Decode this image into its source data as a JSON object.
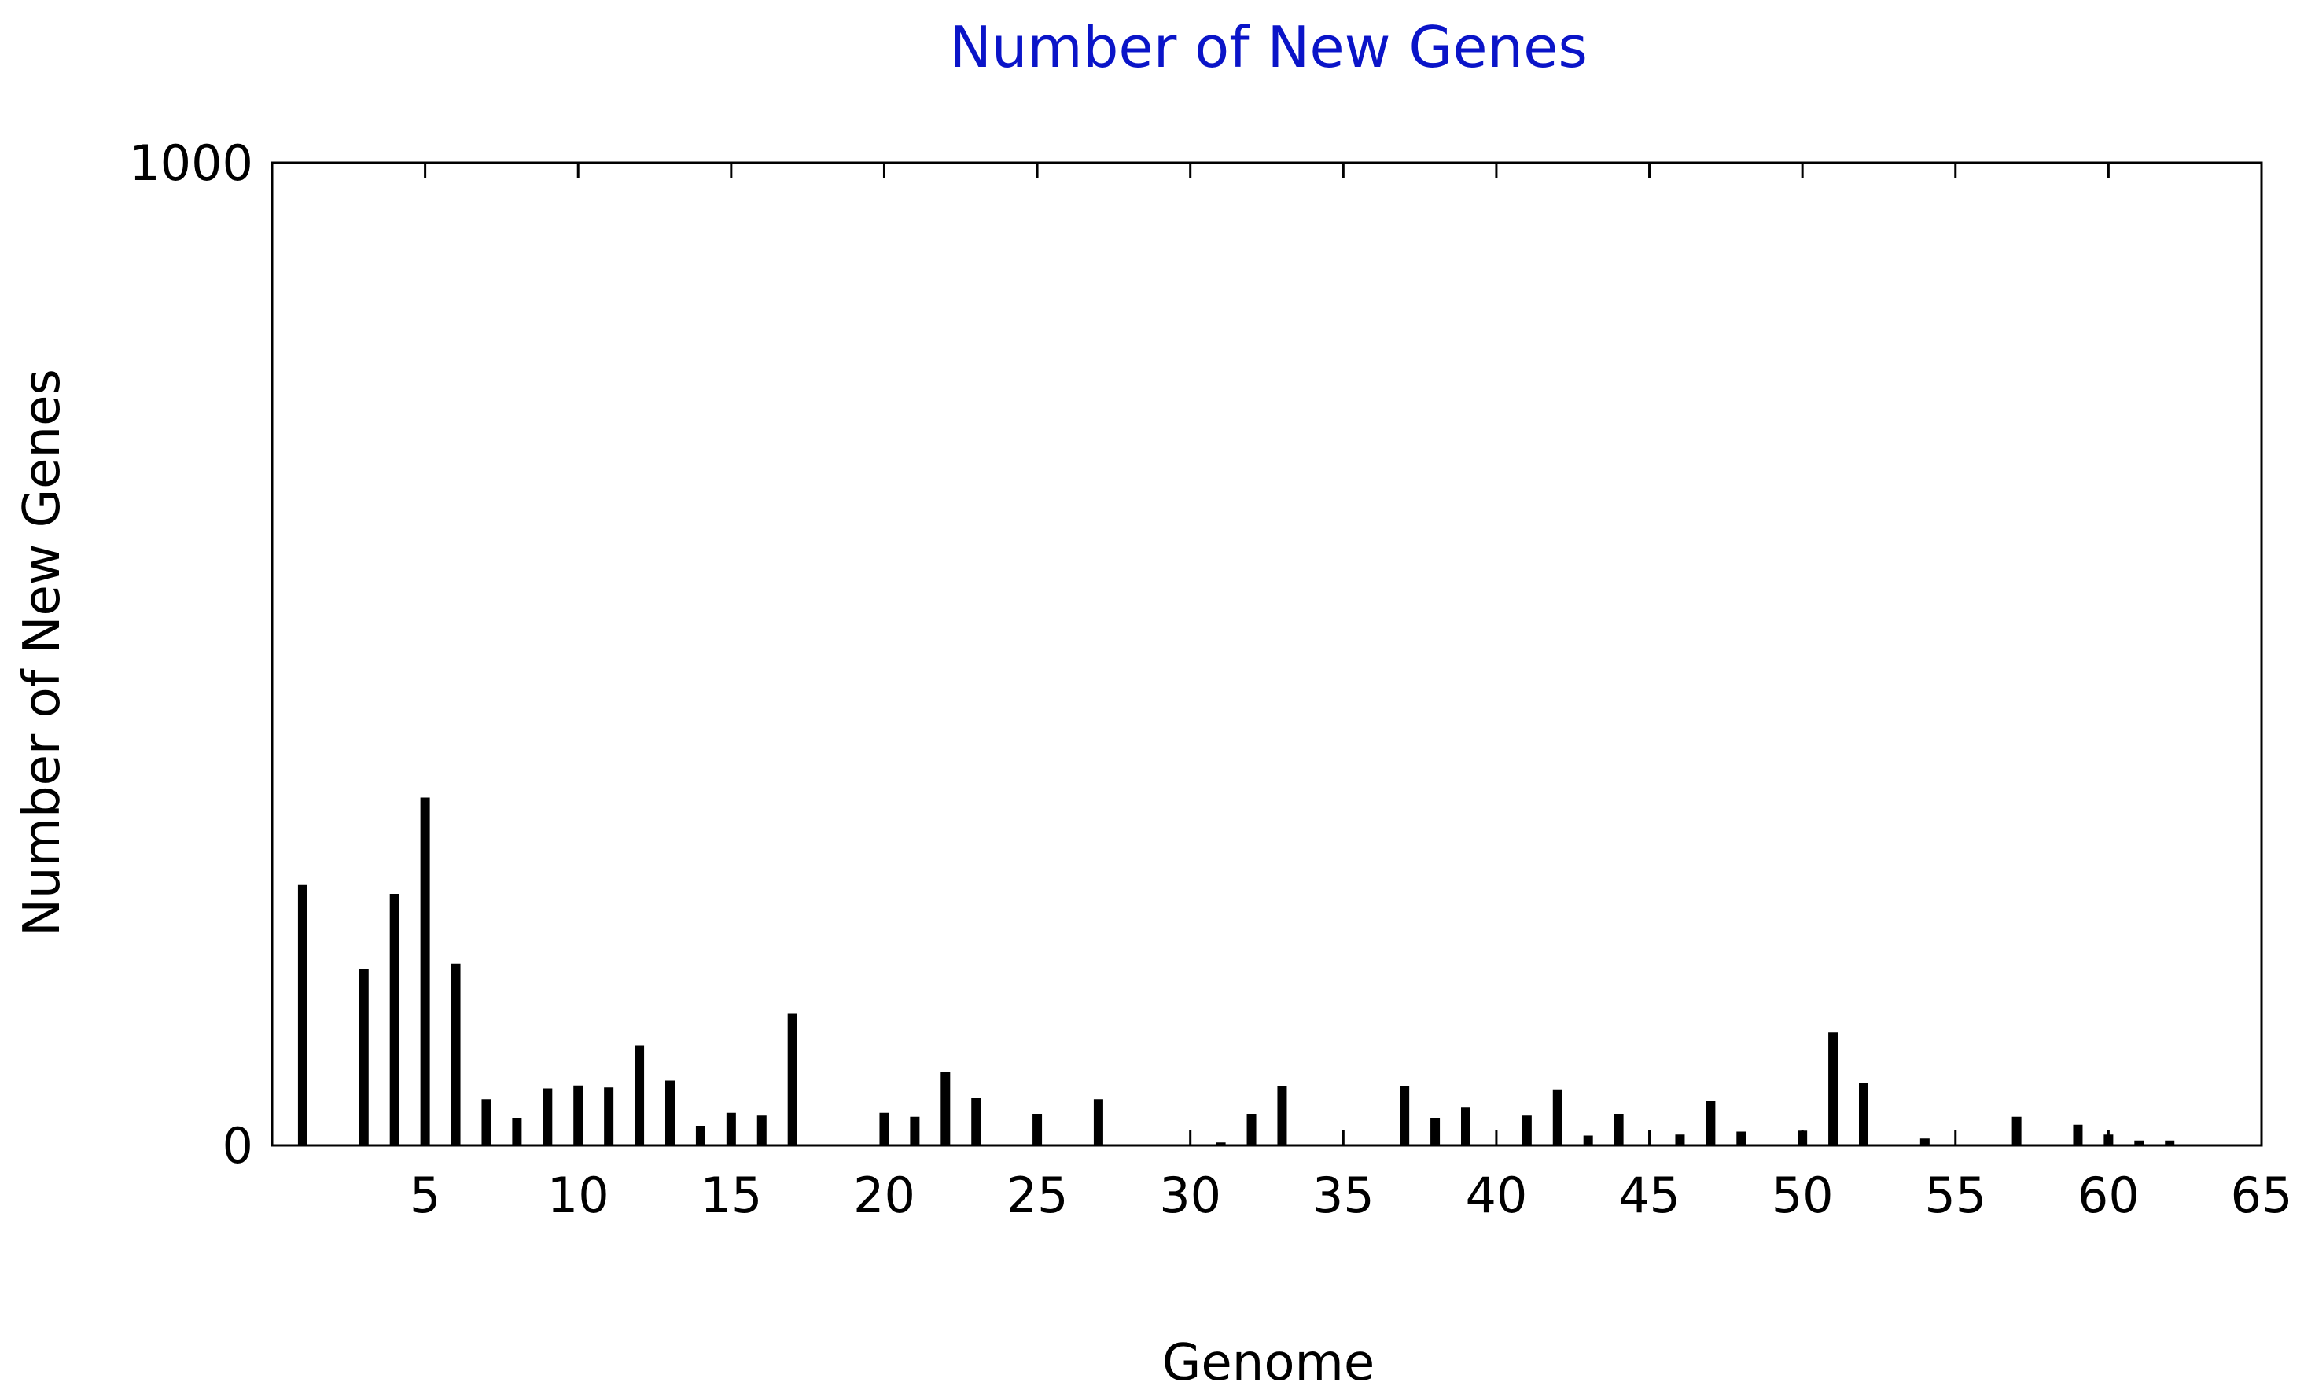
{
  "chart_data": {
    "type": "bar",
    "title": "Number of New Genes",
    "xlabel": "Genome",
    "ylabel": "Number of New Genes",
    "xlim": [
      0,
      65
    ],
    "ylim": [
      0,
      1000
    ],
    "x_ticks": [
      5,
      10,
      15,
      20,
      25,
      30,
      35,
      40,
      45,
      50,
      55,
      60,
      65
    ],
    "y_ticks": [
      0,
      1000
    ],
    "grid": false,
    "legend": "none",
    "bar_color": "#000000",
    "title_color": "#0a14c8",
    "x": [
      1,
      2,
      3,
      4,
      5,
      6,
      7,
      8,
      9,
      10,
      11,
      12,
      13,
      14,
      15,
      16,
      17,
      18,
      19,
      20,
      21,
      22,
      23,
      24,
      25,
      26,
      27,
      28,
      29,
      30,
      31,
      32,
      33,
      34,
      35,
      36,
      37,
      38,
      39,
      40,
      41,
      42,
      43,
      44,
      45,
      46,
      47,
      48,
      49,
      50,
      51,
      52,
      53,
      54,
      55,
      56,
      57,
      58,
      59,
      60,
      61,
      62,
      63,
      64
    ],
    "values": [
      265,
      0,
      180,
      256,
      354,
      185,
      47,
      28,
      58,
      61,
      59,
      102,
      66,
      20,
      33,
      31,
      134,
      0,
      0,
      33,
      29,
      75,
      48,
      0,
      32,
      0,
      47,
      0,
      0,
      0,
      3,
      32,
      60,
      0,
      0,
      0,
      60,
      28,
      39,
      0,
      31,
      57,
      10,
      32,
      0,
      11,
      45,
      14,
      0,
      15,
      115,
      64,
      0,
      7,
      0,
      0,
      29,
      0,
      21,
      11,
      5,
      5,
      0,
      0
    ]
  }
}
